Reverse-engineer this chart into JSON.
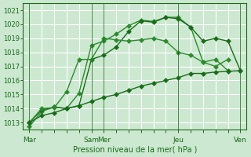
{
  "background_color": "#cce8d0",
  "grid_color": "#ffffff",
  "line_color_dark": "#1a6b1a",
  "line_color_medium": "#2d8b2d",
  "xlabel_text": "Pression niveau de la mer( hPa )",
  "ylim": [
    1012.5,
    1021.5
  ],
  "yticks": [
    1013,
    1014,
    1015,
    1016,
    1017,
    1018,
    1019,
    1020,
    1021
  ],
  "xtick_labels": [
    "Mar",
    "",
    "",
    "",
    "",
    "Sam",
    "Mer",
    "",
    "",
    "",
    "",
    "",
    "Jeu",
    "",
    "",
    "",
    "",
    "Ven"
  ],
  "xtick_positions": [
    0,
    1,
    2,
    3,
    4,
    5,
    6,
    7,
    8,
    9,
    10,
    11,
    12,
    13,
    14,
    15,
    16,
    17
  ],
  "line1_x": [
    0,
    1,
    2,
    3,
    4,
    5,
    6,
    7,
    8,
    9,
    10,
    11,
    12,
    13,
    14,
    15,
    16
  ],
  "line1": [
    1012.7,
    1013.8,
    1014.1,
    1014.0,
    1015.1,
    1018.5,
    1018.8,
    1019.3,
    1019.9,
    1020.3,
    1020.2,
    1020.5,
    1020.5,
    1019.8,
    1017.3,
    1017.5,
    1016.7
  ],
  "line2_x": [
    0,
    1,
    2,
    3,
    4,
    5,
    6,
    7,
    8,
    9,
    10,
    11,
    12,
    13,
    14,
    15,
    16,
    17
  ],
  "line2": [
    1013.0,
    1013.9,
    1014.1,
    1014.0,
    1014.2,
    1017.5,
    1017.8,
    1018.4,
    1019.5,
    1020.25,
    1020.15,
    1020.5,
    1020.4,
    1019.8,
    1018.8,
    1019.0,
    1018.8,
    1016.7
  ],
  "line3_x": [
    0,
    1,
    2,
    3,
    4,
    5,
    6,
    7,
    8,
    9,
    10,
    11,
    12,
    13,
    14,
    15,
    16
  ],
  "line3": [
    1013.0,
    1014.0,
    1014.05,
    1015.2,
    1017.5,
    1017.5,
    1019.0,
    1018.9,
    1018.8,
    1018.9,
    1019.0,
    1018.8,
    1018.0,
    1017.8,
    1017.3,
    1017.0,
    1017.5
  ],
  "line4_x": [
    0,
    1,
    2,
    3,
    4,
    5,
    6,
    7,
    8,
    9,
    10,
    11,
    12,
    13,
    14,
    15,
    16,
    17
  ],
  "line4": [
    1013.0,
    1013.5,
    1013.7,
    1014.0,
    1014.2,
    1014.5,
    1014.8,
    1015.0,
    1015.3,
    1015.6,
    1015.8,
    1016.0,
    1016.2,
    1016.5,
    1016.5,
    1016.6,
    1016.65,
    1016.7
  ],
  "vlines": [
    0,
    5,
    6,
    12,
    17
  ]
}
